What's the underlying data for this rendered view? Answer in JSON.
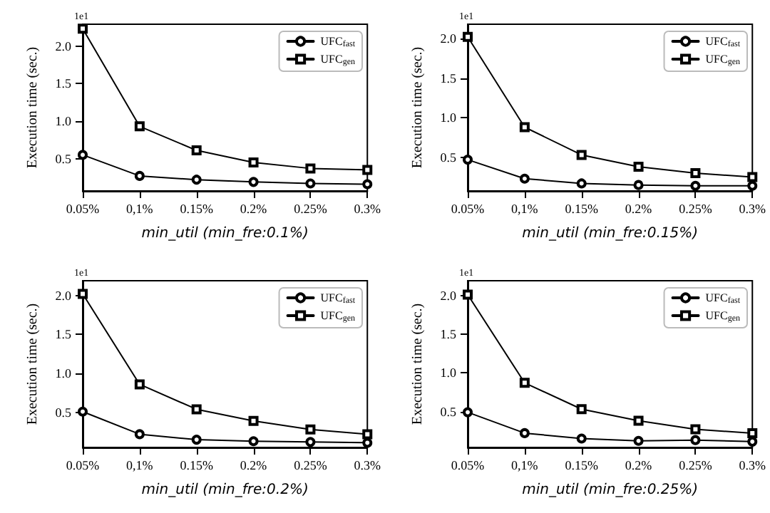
{
  "chart_data": [
    {
      "type": "line",
      "xlabel": "min_util (min_fre:0.1%)",
      "ylabel": "Execution time (sec.)",
      "annotations": [
        "1e1"
      ],
      "categories": [
        "0.05%",
        "0,1%",
        "0.15%",
        "0.2%",
        "0.25%",
        "0.3%"
      ],
      "ylim": [
        0.07,
        2.29
      ],
      "yticks": [
        {
          "value": 0.5,
          "label": "0.5"
        },
        {
          "value": 1,
          "label": "1.0"
        },
        {
          "value": 1.5,
          "label": "1.5"
        },
        {
          "value": 2,
          "label": "2.0"
        }
      ],
      "legend": "top right",
      "line_style": "solid",
      "series": [
        {
          "name": "UFC$_{fast}$",
          "color": "#000000",
          "marker": "circle",
          "values": [
            0.55,
            0.27,
            0.22,
            0.19,
            0.17,
            0.16
          ]
        },
        {
          "name": "UFC$_{gen}$",
          "color": "#000000",
          "marker": "square",
          "values": [
            2.23,
            0.93,
            0.61,
            0.45,
            0.37,
            0.35
          ]
        }
      ]
    },
    {
      "type": "line",
      "xlabel": "min_util (min_fre:0.15%)",
      "ylabel": "Execution time (sec.)",
      "annotations": [
        "1e1"
      ],
      "categories": [
        "0.05%",
        "0,1%",
        "0.15%",
        "0.2%",
        "0.25%",
        "0.3%"
      ],
      "ylim": [
        0.075,
        2.18
      ],
      "yticks": [
        {
          "value": 0.5,
          "label": "0.5"
        },
        {
          "value": 1,
          "label": "1.0"
        },
        {
          "value": 1.5,
          "label": "1.5"
        },
        {
          "value": 2,
          "label": "2.0"
        }
      ],
      "legend": "top right",
      "line_style": "solid",
      "series": [
        {
          "name": "UFC$_{fast}$",
          "color": "#000000",
          "marker": "circle",
          "values": [
            0.47,
            0.23,
            0.17,
            0.15,
            0.14,
            0.14
          ]
        },
        {
          "name": "UFC$_{gen}$",
          "color": "#000000",
          "marker": "square",
          "values": [
            2.02,
            0.88,
            0.53,
            0.38,
            0.3,
            0.25
          ]
        }
      ]
    },
    {
      "type": "line",
      "xlabel": "min_util (min_fre:0.2%)",
      "ylabel": "Execution time (sec.)",
      "annotations": [
        "1e1"
      ],
      "categories": [
        "0.05%",
        "0,1%",
        "0.15%",
        "0.2%",
        "0.25%",
        "0.3%"
      ],
      "ylim": [
        0.05,
        2.19
      ],
      "yticks": [
        {
          "value": 0.5,
          "label": "0.5"
        },
        {
          "value": 1,
          "label": "1.0"
        },
        {
          "value": 1.5,
          "label": "1.5"
        },
        {
          "value": 2,
          "label": "2.0"
        }
      ],
      "legend": "top right",
      "line_style": "solid",
      "series": [
        {
          "name": "UFC$_{fast}$",
          "color": "#000000",
          "marker": "circle",
          "values": [
            0.51,
            0.22,
            0.15,
            0.13,
            0.12,
            0.11
          ]
        },
        {
          "name": "UFC$_{gen}$",
          "color": "#000000",
          "marker": "square",
          "values": [
            2.02,
            0.86,
            0.54,
            0.39,
            0.28,
            0.22
          ]
        }
      ]
    },
    {
      "type": "line",
      "xlabel": "min_util (min_fre:0.25%)",
      "ylabel": "Execution time (sec.)",
      "annotations": [
        "1e1"
      ],
      "categories": [
        "0.05%",
        "0,1%",
        "0.15%",
        "0.2%",
        "0.25%",
        "0.3%"
      ],
      "ylim": [
        0.035,
        2.19
      ],
      "yticks": [
        {
          "value": 0.5,
          "label": "0.5"
        },
        {
          "value": 1,
          "label": "1.0"
        },
        {
          "value": 1.5,
          "label": "1.5"
        },
        {
          "value": 2,
          "label": "2.0"
        }
      ],
      "legend": "top right",
      "line_style": "solid",
      "series": [
        {
          "name": "UFC$_{fast}$",
          "color": "#000000",
          "marker": "circle",
          "values": [
            0.49,
            0.22,
            0.15,
            0.12,
            0.13,
            0.11
          ]
        },
        {
          "name": "UFC$_{gen}$",
          "color": "#000000",
          "marker": "square",
          "values": [
            2.01,
            0.87,
            0.53,
            0.38,
            0.27,
            0.22
          ]
        }
      ]
    }
  ]
}
